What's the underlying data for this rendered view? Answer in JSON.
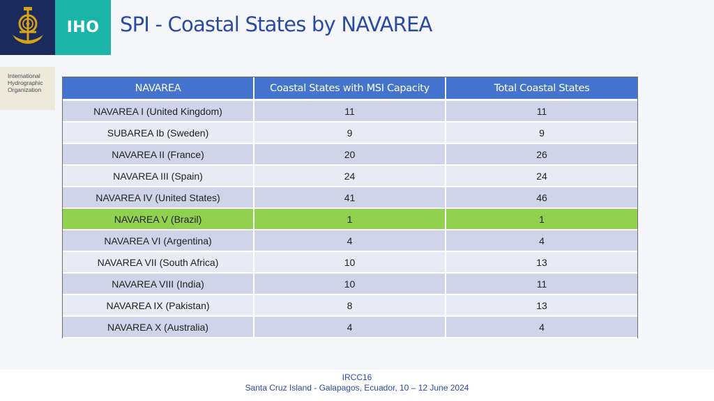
{
  "branding": {
    "logo_icon": "iho-emblem-icon",
    "short_name": "IHO",
    "org_name_lines": [
      "International",
      "Hydrographic",
      "Organization"
    ],
    "colors": {
      "navy": "#1b2a5c",
      "teal": "#1bb5a8",
      "gold": "#d9a21b"
    }
  },
  "title": "SPI - Coastal States by NAVAREA",
  "table": {
    "headers": [
      "NAVAREA",
      "Coastal States with MSI Capacity",
      "Total Coastal States"
    ],
    "header_color": "#4574cf",
    "highlight_color": "#92d050",
    "rows": [
      {
        "navarea": "NAVAREA I (United Kingdom)",
        "msi_capacity": "11",
        "total": "11",
        "highlight": false
      },
      {
        "navarea": "SUBAREA Ib (Sweden)",
        "msi_capacity": "9",
        "total": "9",
        "highlight": false
      },
      {
        "navarea": "NAVAREA II (France)",
        "msi_capacity": "20",
        "total": "26",
        "highlight": false
      },
      {
        "navarea": "NAVAREA III (Spain)",
        "msi_capacity": "24",
        "total": "24",
        "highlight": false
      },
      {
        "navarea": "NAVAREA IV (United States)",
        "msi_capacity": "41",
        "total": "46",
        "highlight": false
      },
      {
        "navarea": "NAVAREA V (Brazil)",
        "msi_capacity": "1",
        "total": "1",
        "highlight": true
      },
      {
        "navarea": "NAVAREA VI (Argentina)",
        "msi_capacity": "4",
        "total": "4",
        "highlight": false
      },
      {
        "navarea": "NAVAREA VII (South Africa)",
        "msi_capacity": "10",
        "total": "13",
        "highlight": false
      },
      {
        "navarea": "NAVAREA VIII (India)",
        "msi_capacity": "10",
        "total": "11",
        "highlight": false
      },
      {
        "navarea": "NAVAREA IX (Pakistan)",
        "msi_capacity": "8",
        "total": "13",
        "highlight": false
      },
      {
        "navarea": "NAVAREA X (Australia)",
        "msi_capacity": "4",
        "total": "4",
        "highlight": false
      }
    ]
  },
  "footer": {
    "line1": "IRCC16",
    "line2": "Santa Cruz Island - Galapagos, Ecuador, 10 – 12 June 2024"
  }
}
